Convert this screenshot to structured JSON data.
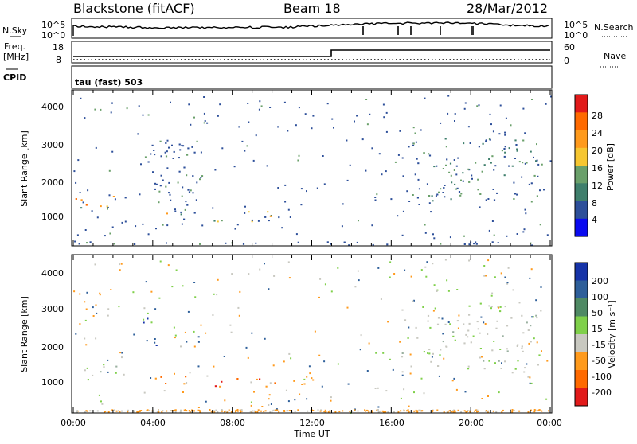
{
  "header": {
    "station": "Blackstone (fitACF)",
    "beam": "Beam 18",
    "date": "28/Mar/2012"
  },
  "top_panels": {
    "nsky_label": "N.Sky",
    "nsky_tick_top": "10^5",
    "nsky_tick_bottom": "10^0",
    "nsearch_label": "N.Search",
    "nsearch_tick_top": "10^5",
    "nsearch_tick_bottom": "10^0",
    "freq_label": "Freq.",
    "freq_unit": "[MHz]",
    "freq_ticks": [
      "18",
      "8"
    ],
    "nave_label": "Nave",
    "nave_ticks": [
      "60",
      "0"
    ],
    "cpid_label": "CPID",
    "cpid_text": "tau (fast) 503"
  },
  "chart_data": [
    {
      "type": "heatmap",
      "name": "power",
      "ylabel": "Slant Range [km]",
      "yticks": [
        "4000",
        "3000",
        "2000",
        "1000"
      ],
      "ylim": [
        180,
        4500
      ],
      "xlim": [
        0,
        24
      ],
      "colorbar": {
        "label": "Power [dB]",
        "ticks": [
          "28",
          "24",
          "20",
          "16",
          "12",
          "8",
          "4"
        ],
        "colors": [
          "#e21a1a",
          "#ff6a00",
          "#ff9a1c",
          "#f6c630",
          "#6aa06a",
          "#3f7f6c",
          "#2d4f9a",
          "#0a0af0"
        ]
      },
      "echo_regions": [
        {
          "x0": 0.0,
          "x1": 2.8,
          "y0": 1100,
          "y1": 1600,
          "level": "mixed"
        },
        {
          "x0": 3.8,
          "x1": 6.2,
          "y0": 900,
          "y1": 1200,
          "level": "mixed"
        },
        {
          "x0": 7.0,
          "x1": 11.6,
          "y0": 850,
          "y1": 1150,
          "level": "mixed"
        },
        {
          "x0": 3.5,
          "x1": 6.5,
          "y0": 1300,
          "y1": 3100,
          "level": "weak"
        },
        {
          "x0": 16.5,
          "x1": 23.5,
          "y0": 1400,
          "y1": 3200,
          "level": "medium"
        },
        {
          "x0": 0.0,
          "x1": 24.0,
          "y0": 200,
          "y1": 320,
          "level": "weak"
        }
      ]
    },
    {
      "type": "heatmap",
      "name": "velocity",
      "ylabel": "Slant Range [km]",
      "yticks": [
        "4000",
        "3000",
        "2000",
        "1000"
      ],
      "ylim": [
        180,
        4500
      ],
      "xlim": [
        0,
        24
      ],
      "xlabel": "Time UT",
      "xticks": [
        "00:00",
        "04:00",
        "08:00",
        "12:00",
        "16:00",
        "20:00",
        "00:00"
      ],
      "colorbar": {
        "label": "Velocity [m s⁻¹]",
        "ticks": [
          "200",
          "100",
          "50",
          "15",
          "-15",
          "-50",
          "-100",
          "-200"
        ],
        "colors": [
          "#1633a8",
          "#2e5f9a",
          "#4f8a64",
          "#7fd04a",
          "#c8c8c0",
          "#ff9a1c",
          "#ff6a00",
          "#e21a1a"
        ]
      },
      "echo_regions": [
        {
          "x0": 0.0,
          "x1": 2.8,
          "y0": 1100,
          "y1": 1600,
          "level": "low"
        },
        {
          "x0": 3.8,
          "x1": 6.2,
          "y0": 900,
          "y1": 1200,
          "level": "negative"
        },
        {
          "x0": 7.0,
          "x1": 11.6,
          "y0": 850,
          "y1": 1150,
          "level": "negative"
        },
        {
          "x0": 3.5,
          "x1": 4.2,
          "y0": 1800,
          "y1": 2900,
          "level": "positive"
        },
        {
          "x0": 16.5,
          "x1": 23.5,
          "y0": 1400,
          "y1": 3200,
          "level": "low"
        }
      ]
    }
  ]
}
